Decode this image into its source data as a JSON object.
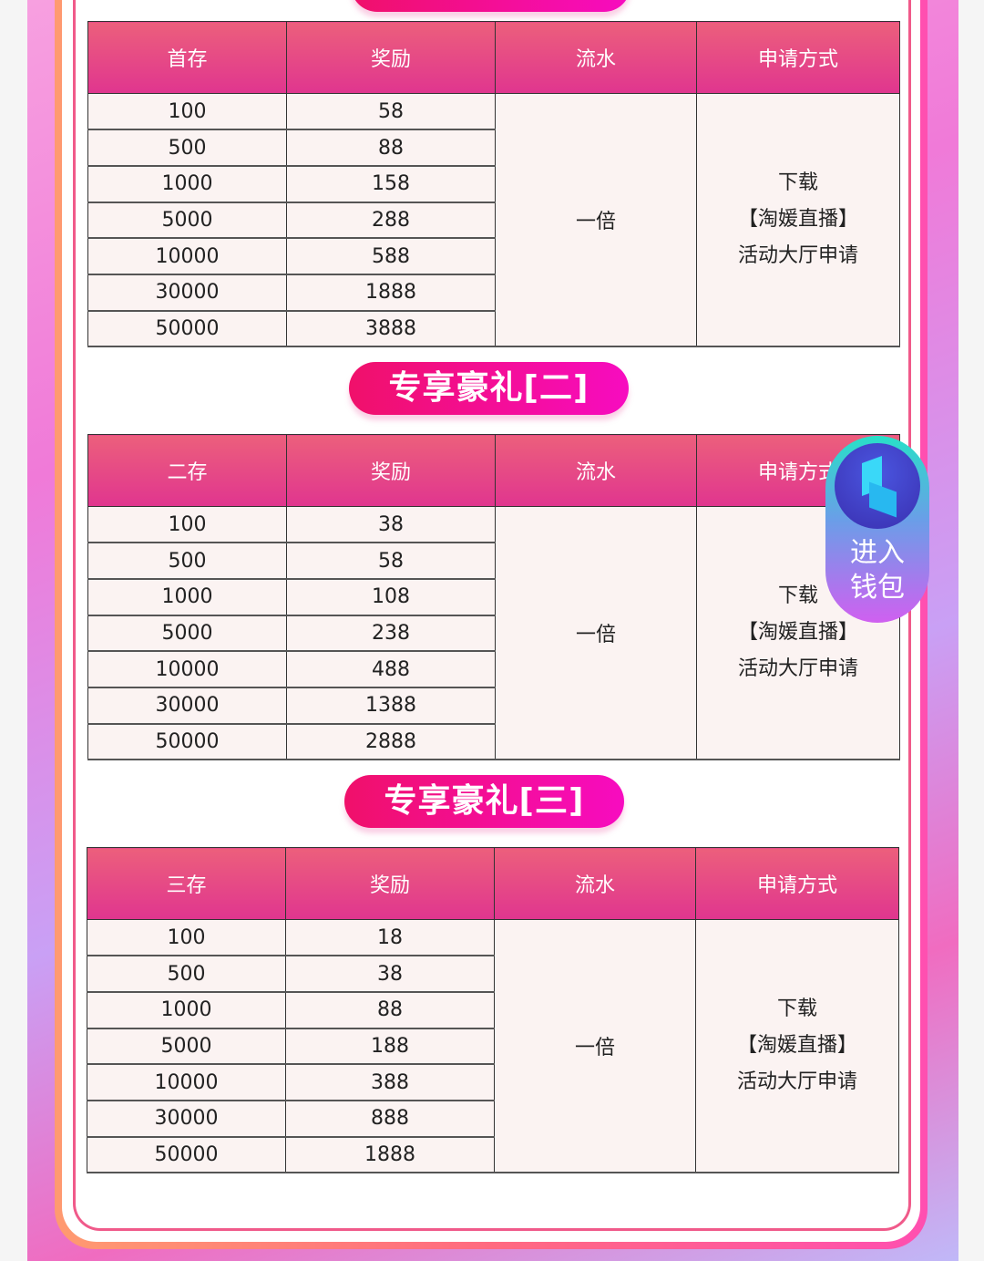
{
  "sections": [
    {
      "title": "",
      "headers": [
        "首存",
        "奖励",
        "流水",
        "申请方式"
      ],
      "rows": [
        [
          "100",
          "58"
        ],
        [
          "500",
          "88"
        ],
        [
          "1000",
          "158"
        ],
        [
          "5000",
          "288"
        ],
        [
          "10000",
          "588"
        ],
        [
          "30000",
          "1888"
        ],
        [
          "50000",
          "3888"
        ]
      ],
      "turnover": "一倍",
      "method": [
        "下载",
        "【淘媛直播】",
        "活动大厅申请"
      ]
    },
    {
      "title": "专享豪礼[二]",
      "headers": [
        "二存",
        "奖励",
        "流水",
        "申请方式"
      ],
      "rows": [
        [
          "100",
          "38"
        ],
        [
          "500",
          "58"
        ],
        [
          "1000",
          "108"
        ],
        [
          "5000",
          "238"
        ],
        [
          "10000",
          "488"
        ],
        [
          "30000",
          "1388"
        ],
        [
          "50000",
          "2888"
        ]
      ],
      "turnover": "一倍",
      "method": [
        "下载",
        "【淘媛直播】",
        "活动大厅申请"
      ]
    },
    {
      "title": "专享豪礼[三]",
      "headers": [
        "三存",
        "奖励",
        "流水",
        "申请方式"
      ],
      "rows": [
        [
          "100",
          "18"
        ],
        [
          "500",
          "38"
        ],
        [
          "1000",
          "88"
        ],
        [
          "5000",
          "188"
        ],
        [
          "10000",
          "388"
        ],
        [
          "30000",
          "888"
        ],
        [
          "50000",
          "1888"
        ]
      ],
      "turnover": "一倍",
      "method": [
        "下载",
        "【淘媛直播】",
        "活动大厅申请"
      ]
    }
  ],
  "wallet_button": {
    "line1": "进入",
    "line2": "钱包",
    "icon": "wallet-logo-icon"
  },
  "colors": {
    "header": "#e0358f",
    "pill": "#f0106a",
    "cell_bg": "#fbf3f2"
  }
}
